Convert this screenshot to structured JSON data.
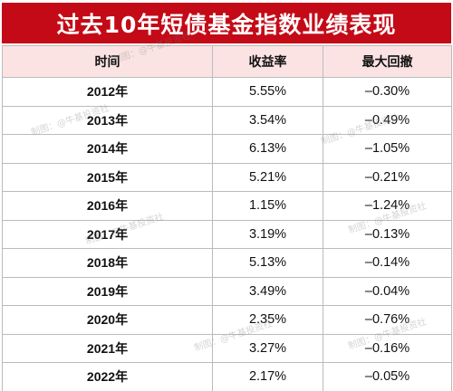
{
  "title": "过去10年短债基金指数业绩表现",
  "table": {
    "headers": [
      "时间",
      "收益率",
      "最大回撤"
    ],
    "rows": [
      {
        "year": "2012年",
        "return": "5.55%",
        "drawdown": "–0.30%"
      },
      {
        "year": "2013年",
        "return": "3.54%",
        "drawdown": "–0.49%"
      },
      {
        "year": "2014年",
        "return": "6.13%",
        "drawdown": "–1.05%"
      },
      {
        "year": "2015年",
        "return": "5.21%",
        "drawdown": "–0.21%"
      },
      {
        "year": "2016年",
        "return": "1.15%",
        "drawdown": "–1.24%"
      },
      {
        "year": "2017年",
        "return": "3.19%",
        "drawdown": "–0.13%"
      },
      {
        "year": "2018年",
        "return": "5.13%",
        "drawdown": "–0.14%"
      },
      {
        "year": "2019年",
        "return": "3.49%",
        "drawdown": "–0.04%"
      },
      {
        "year": "2020年",
        "return": "2.35%",
        "drawdown": "–0.76%"
      },
      {
        "year": "2021年",
        "return": "3.27%",
        "drawdown": "–0.16%"
      },
      {
        "year": "2022年",
        "return": "2.17%",
        "drawdown": "–0.05%"
      }
    ]
  },
  "watermark": "制图：@牛基投资社",
  "colors": {
    "title_bg": "#c40a17",
    "header_bg": "#fbe3e3",
    "text": "#111111"
  }
}
